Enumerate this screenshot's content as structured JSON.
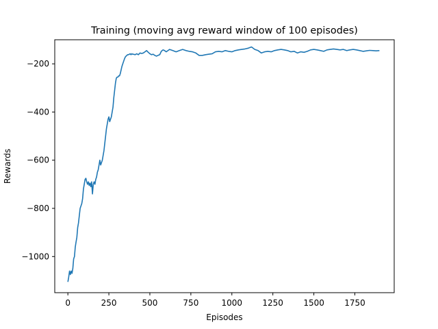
{
  "chart_data": {
    "type": "line",
    "title": "Training (moving avg reward window of 100 episodes)",
    "xlabel": "Episodes",
    "ylabel": "Rewards",
    "xlim": [
      -80,
      1990
    ],
    "ylim": [
      -1150,
      -100
    ],
    "xticks": [
      0,
      250,
      500,
      750,
      1000,
      1250,
      1500,
      1750
    ],
    "yticks": [
      -1000,
      -800,
      -600,
      -400,
      -200
    ],
    "xtick_labels": [
      "0",
      "250",
      "500",
      "750",
      "1000",
      "1250",
      "1500",
      "1750"
    ],
    "ytick_labels": [
      "−1000",
      "−800",
      "−600",
      "−400",
      "−200"
    ],
    "grid": false,
    "series": [
      {
        "color": "#1f77b4",
        "x": [
          0,
          5,
          10,
          15,
          20,
          25,
          30,
          35,
          40,
          45,
          50,
          55,
          60,
          65,
          70,
          75,
          80,
          85,
          90,
          95,
          100,
          105,
          110,
          115,
          120,
          125,
          130,
          135,
          140,
          145,
          150,
          155,
          160,
          165,
          170,
          175,
          180,
          185,
          190,
          195,
          200,
          205,
          210,
          215,
          220,
          225,
          230,
          235,
          240,
          245,
          250,
          255,
          260,
          265,
          270,
          275,
          280,
          285,
          290,
          295,
          300,
          305,
          310,
          315,
          320,
          325,
          330,
          335,
          340,
          345,
          350,
          355,
          360,
          365,
          370,
          375,
          380,
          385,
          390,
          395,
          400,
          410,
          420,
          430,
          440,
          450,
          460,
          470,
          480,
          490,
          500,
          510,
          520,
          530,
          540,
          550,
          560,
          570,
          580,
          590,
          600,
          620,
          640,
          660,
          680,
          700,
          720,
          740,
          760,
          780,
          800,
          820,
          840,
          860,
          880,
          900,
          920,
          940,
          960,
          980,
          1000,
          1020,
          1040,
          1060,
          1080,
          1100,
          1120,
          1140,
          1160,
          1180,
          1200,
          1220,
          1240,
          1260,
          1280,
          1300,
          1320,
          1340,
          1360,
          1380,
          1400,
          1420,
          1440,
          1460,
          1480,
          1500,
          1520,
          1540,
          1560,
          1580,
          1600,
          1620,
          1640,
          1660,
          1680,
          1700,
          1720,
          1740,
          1760,
          1780,
          1800,
          1820,
          1840,
          1860,
          1880,
          1900
        ],
        "y": [
          -1105,
          -1085,
          -1060,
          -1075,
          -1060,
          -1070,
          -1050,
          -1010,
          -1000,
          -960,
          -940,
          -920,
          -880,
          -860,
          -830,
          -800,
          -790,
          -780,
          -760,
          -720,
          -700,
          -680,
          -675,
          -690,
          -700,
          -690,
          -705,
          -695,
          -710,
          -690,
          -740,
          -700,
          -690,
          -700,
          -680,
          -670,
          -650,
          -640,
          -620,
          -600,
          -620,
          -610,
          -600,
          -580,
          -560,
          -530,
          -500,
          -470,
          -450,
          -430,
          -420,
          -440,
          -430,
          -420,
          -400,
          -380,
          -340,
          -310,
          -280,
          -260,
          -255,
          -255,
          -250,
          -250,
          -240,
          -225,
          -210,
          -200,
          -190,
          -180,
          -172,
          -168,
          -165,
          -162,
          -162,
          -160,
          -158,
          -162,
          -158,
          -160,
          -160,
          -162,
          -158,
          -162,
          -155,
          -157,
          -155,
          -150,
          -145,
          -152,
          -158,
          -162,
          -160,
          -165,
          -168,
          -165,
          -162,
          -148,
          -142,
          -145,
          -150,
          -140,
          -145,
          -150,
          -145,
          -140,
          -145,
          -148,
          -150,
          -155,
          -165,
          -165,
          -162,
          -160,
          -158,
          -150,
          -148,
          -150,
          -145,
          -148,
          -150,
          -145,
          -142,
          -140,
          -138,
          -135,
          -130,
          -140,
          -145,
          -155,
          -150,
          -148,
          -150,
          -145,
          -142,
          -140,
          -142,
          -145,
          -150,
          -148,
          -155,
          -150,
          -152,
          -148,
          -142,
          -140,
          -142,
          -145,
          -148,
          -142,
          -140,
          -138,
          -140,
          -142,
          -140,
          -145,
          -142,
          -140,
          -142,
          -145,
          -148,
          -146,
          -144,
          -145,
          -146,
          -145
        ]
      }
    ]
  }
}
